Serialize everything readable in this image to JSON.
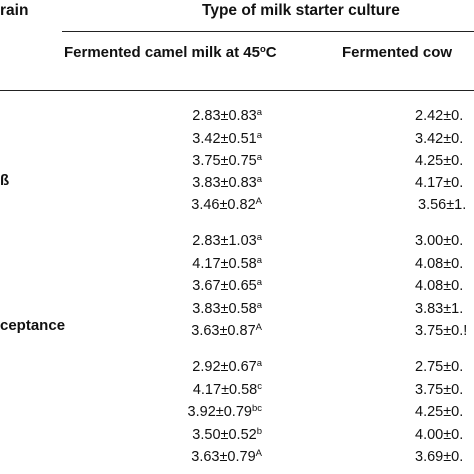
{
  "header": {
    "first_col_fragment": "rain",
    "group_title": "Type of milk starter culture",
    "col1_title": "Fermented camel milk at 45",
    "col1_title_sup": "o",
    "col1_title_end": "C",
    "col2_title": "Fermented cow"
  },
  "row_labels": {
    "label_a": "ß",
    "label_b": "ceptance"
  },
  "rows": [
    {
      "c1": "2.83±0.83",
      "c1s": "a",
      "c2": "2.42±0."
    },
    {
      "c1": "3.42±0.51",
      "c1s": "a",
      "c2": "3.42±0."
    },
    {
      "c1": "3.75±0.75",
      "c1s": "a",
      "c2": "4.25±0."
    },
    {
      "c1": "3.83±0.83",
      "c1s": "a",
      "c2": "4.17±0."
    },
    {
      "c1": "3.46±0.82",
      "c1s": "A",
      "c2": "3.56±1."
    },
    {
      "c1": "2.83±1.03",
      "c1s": "a",
      "c2": "3.00±0."
    },
    {
      "c1": "4.17±0.58",
      "c1s": "a",
      "c2": "4.08±0."
    },
    {
      "c1": "3.67±0.65",
      "c1s": "a",
      "c2": "4.08±0."
    },
    {
      "c1": "3.83±0.58",
      "c1s": "a",
      "c2": "3.83±1."
    },
    {
      "c1": "3.63±0.87",
      "c1s": "A",
      "c2": "3.75±0.!"
    },
    {
      "c1": "2.92±0.67",
      "c1s": "a",
      "c2": "2.75±0."
    },
    {
      "c1": "4.17±0.58",
      "c1s": "c",
      "c2": "3.75±0."
    },
    {
      "c1": "3.92±0.79",
      "c1s": "bc",
      "c2": "4.25±0."
    },
    {
      "c1": "3.50±0.52",
      "c1s": "b",
      "c2": "4.00±0."
    },
    {
      "c1": "3.63±0.79",
      "c1s": "A",
      "c2": "3.69±0."
    }
  ]
}
